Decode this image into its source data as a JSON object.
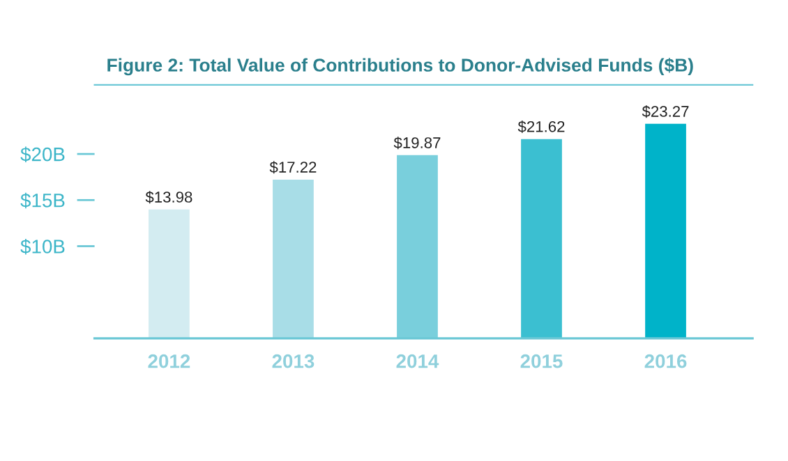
{
  "chart_data": {
    "type": "bar",
    "title": "Figure 2: Total Value of Contributions to Donor-Advised Funds ($B)",
    "categories": [
      "2012",
      "2013",
      "2014",
      "2015",
      "2016"
    ],
    "values": [
      13.98,
      17.22,
      19.87,
      21.62,
      23.27
    ],
    "colors": [
      "#d3ecf1",
      "#a8dde7",
      "#79cfdc",
      "#3bbfd1",
      "#00b3c9"
    ],
    "value_labels": [
      "$13.98",
      "$17.22",
      "$19.87",
      "$21.62",
      "$23.27"
    ],
    "ylim": [
      0,
      27.5
    ],
    "yticks": [
      {
        "value": 10,
        "label": "$10B"
      },
      {
        "value": 15,
        "label": "$15B"
      },
      {
        "value": 20,
        "label": "$20B"
      }
    ],
    "grid": false
  }
}
